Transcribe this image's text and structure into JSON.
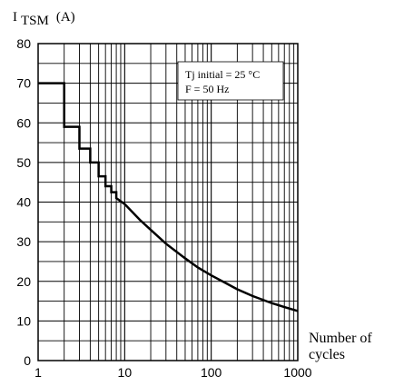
{
  "chart_data": {
    "type": "line",
    "title": "",
    "ylabel_main": "I",
    "ylabel_sub": "TSM",
    "ylabel_unit": "(A)",
    "xlabel_line1": "Number of",
    "xlabel_line2": "cycles",
    "x_scale": "log",
    "xlim": [
      1,
      1000
    ],
    "ylim": [
      0,
      80
    ],
    "grid": true,
    "x_ticks": [
      1,
      10,
      100,
      1000
    ],
    "x_tick_labels": [
      "1",
      "10",
      "100",
      "1000"
    ],
    "y_ticks": [
      0,
      10,
      20,
      30,
      40,
      50,
      60,
      70,
      80
    ],
    "y_tick_labels": [
      "0",
      "10",
      "20",
      "30",
      "40",
      "50",
      "60",
      "70",
      "80"
    ],
    "annotation_line1": "Tj initial = 25 °C",
    "annotation_line2": "F =  50 Hz",
    "series": [
      {
        "x": [
          1,
          2,
          2,
          3,
          3,
          4,
          4,
          5,
          5,
          6,
          6,
          7,
          7,
          8,
          8,
          10,
          15,
          20,
          30,
          50,
          70,
          100,
          200,
          300,
          500,
          700,
          1000
        ],
        "y": [
          70,
          70,
          59,
          59,
          53.5,
          53.5,
          50,
          50,
          46.5,
          46.5,
          44,
          44,
          42.5,
          42.5,
          41,
          39.5,
          35.5,
          33,
          29.5,
          25.8,
          23.5,
          21.5,
          18,
          16.3,
          14.5,
          13.5,
          12.5
        ]
      }
    ]
  }
}
